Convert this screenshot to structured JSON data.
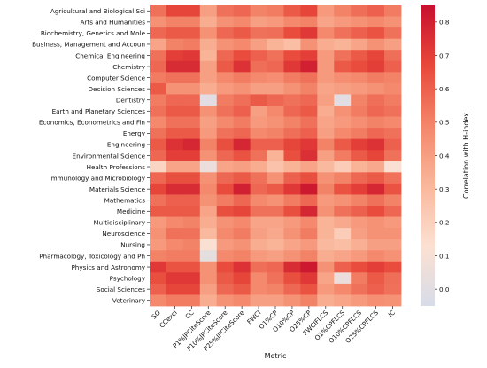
{
  "chart_data": {
    "type": "heatmap",
    "title": "",
    "xlabel": "Metric",
    "colorbar_label": "Correlation with H-index",
    "value_range": [
      -0.05,
      0.85
    ],
    "colorbar_ticks": [
      0.0,
      0.1,
      0.2,
      0.3,
      0.4,
      0.5,
      0.6,
      0.7,
      0.8
    ],
    "colorbar_tick_labels": [
      "0.0",
      "0.1",
      "0.2",
      "0.3",
      "0.4",
      "0.5",
      "0.6",
      "0.7",
      "0.8"
    ],
    "colormap": [
      "#d7dce8",
      "#fce0d2",
      "#f9b79b",
      "#f4866a",
      "#e8483a",
      "#c8102e"
    ],
    "columns": [
      "SO",
      "CCexcl",
      "CC",
      "P1%JPCiteScore",
      "P10%JPCiteScore",
      "P25%JPCiteScore",
      "FWCI",
      "O1%CP",
      "O10%CP",
      "O25%CP",
      "FWCIFLCS",
      "O1%CPFLCS",
      "O10%CPFLCS",
      "O25%CPFLCS",
      "IC"
    ],
    "rows": [
      "Agricultural and Biological Sci",
      "Arts and Humanities",
      "Biochemistry, Genetics and Mole",
      "Business, Management and Accoun",
      "Chemical Engineering",
      "Chemistry",
      "Computer Science",
      "Decision Sciences",
      "Dentistry",
      "Earth and Planetary Sciences",
      "Economics, Econometrics and Fin",
      "Energy",
      "Engineering",
      "Environmental Science",
      "Health Professions",
      "Immunology and Microbiology",
      "Materials Science",
      "Mathematics",
      "Medicine",
      "Multidisciplinary",
      "Neuroscience",
      "Nursing",
      "Pharmacology, Toxicology and Ph",
      "Physics and Astronomy",
      "Psychology",
      "Social Sciences",
      "Veterinary"
    ],
    "values": [
      [
        0.55,
        0.68,
        0.68,
        0.4,
        0.55,
        0.58,
        0.5,
        0.52,
        0.62,
        0.68,
        0.42,
        0.5,
        0.56,
        0.6,
        0.52
      ],
      [
        0.45,
        0.5,
        0.5,
        0.35,
        0.45,
        0.48,
        0.4,
        0.42,
        0.48,
        0.5,
        0.38,
        0.42,
        0.45,
        0.48,
        0.45
      ],
      [
        0.58,
        0.62,
        0.62,
        0.45,
        0.58,
        0.62,
        0.55,
        0.56,
        0.66,
        0.72,
        0.48,
        0.55,
        0.6,
        0.64,
        0.55
      ],
      [
        0.38,
        0.5,
        0.52,
        0.35,
        0.45,
        0.48,
        0.4,
        0.32,
        0.28,
        0.45,
        0.35,
        0.32,
        0.38,
        0.45,
        0.4
      ],
      [
        0.55,
        0.7,
        0.72,
        0.32,
        0.58,
        0.66,
        0.6,
        0.55,
        0.66,
        0.7,
        0.42,
        0.55,
        0.62,
        0.68,
        0.56
      ],
      [
        0.58,
        0.76,
        0.76,
        0.4,
        0.62,
        0.74,
        0.56,
        0.58,
        0.72,
        0.8,
        0.42,
        0.62,
        0.66,
        0.7,
        0.6
      ],
      [
        0.52,
        0.55,
        0.55,
        0.4,
        0.48,
        0.52,
        0.48,
        0.46,
        0.52,
        0.55,
        0.42,
        0.46,
        0.48,
        0.52,
        0.5
      ],
      [
        0.62,
        0.45,
        0.45,
        0.35,
        0.42,
        0.45,
        0.4,
        0.4,
        0.45,
        0.5,
        0.38,
        0.4,
        0.42,
        0.45,
        0.48
      ],
      [
        0.52,
        0.58,
        0.58,
        0.0,
        0.52,
        0.56,
        0.62,
        0.58,
        0.55,
        0.58,
        0.4,
        0.0,
        0.5,
        0.56,
        0.52
      ],
      [
        0.55,
        0.62,
        0.62,
        0.45,
        0.55,
        0.6,
        0.4,
        0.48,
        0.58,
        0.62,
        0.35,
        0.45,
        0.52,
        0.58,
        0.55
      ],
      [
        0.48,
        0.55,
        0.55,
        0.4,
        0.48,
        0.52,
        0.42,
        0.45,
        0.5,
        0.55,
        0.38,
        0.42,
        0.46,
        0.5,
        0.48
      ],
      [
        0.55,
        0.62,
        0.62,
        0.42,
        0.55,
        0.58,
        0.48,
        0.5,
        0.56,
        0.6,
        0.4,
        0.48,
        0.52,
        0.58,
        0.55
      ],
      [
        0.62,
        0.74,
        0.78,
        0.5,
        0.65,
        0.78,
        0.6,
        0.6,
        0.68,
        0.72,
        0.5,
        0.62,
        0.7,
        0.74,
        0.6
      ],
      [
        0.58,
        0.7,
        0.7,
        0.45,
        0.58,
        0.64,
        0.55,
        0.32,
        0.65,
        0.75,
        0.4,
        0.52,
        0.62,
        0.68,
        0.55
      ],
      [
        0.18,
        0.38,
        0.38,
        0.05,
        0.38,
        0.4,
        0.35,
        0.26,
        0.32,
        0.38,
        0.3,
        0.22,
        0.32,
        0.36,
        0.12
      ],
      [
        0.58,
        0.65,
        0.65,
        0.45,
        0.58,
        0.62,
        0.55,
        0.45,
        0.6,
        0.65,
        0.45,
        0.5,
        0.58,
        0.62,
        0.55
      ],
      [
        0.68,
        0.76,
        0.76,
        0.48,
        0.66,
        0.8,
        0.58,
        0.62,
        0.72,
        0.82,
        0.5,
        0.64,
        0.7,
        0.78,
        0.64
      ],
      [
        0.55,
        0.6,
        0.6,
        0.45,
        0.52,
        0.58,
        0.48,
        0.45,
        0.52,
        0.58,
        0.42,
        0.45,
        0.5,
        0.55,
        0.5
      ],
      [
        0.62,
        0.62,
        0.62,
        0.38,
        0.65,
        0.68,
        0.55,
        0.55,
        0.65,
        0.78,
        0.45,
        0.55,
        0.6,
        0.66,
        0.58
      ],
      [
        0.42,
        0.48,
        0.5,
        0.35,
        0.45,
        0.48,
        0.38,
        0.38,
        0.42,
        0.48,
        0.32,
        0.36,
        0.42,
        0.45,
        0.42
      ],
      [
        0.45,
        0.55,
        0.55,
        0.3,
        0.48,
        0.52,
        0.4,
        0.36,
        0.45,
        0.52,
        0.32,
        0.22,
        0.4,
        0.45,
        0.45
      ],
      [
        0.42,
        0.48,
        0.5,
        0.12,
        0.42,
        0.45,
        0.35,
        0.32,
        0.38,
        0.42,
        0.3,
        0.28,
        0.34,
        0.4,
        0.4
      ],
      [
        0.5,
        0.52,
        0.52,
        0.02,
        0.48,
        0.5,
        0.42,
        0.4,
        0.45,
        0.5,
        0.35,
        0.38,
        0.42,
        0.48,
        0.45
      ],
      [
        0.72,
        0.64,
        0.64,
        0.45,
        0.66,
        0.74,
        0.56,
        0.58,
        0.76,
        0.82,
        0.45,
        0.6,
        0.66,
        0.7,
        0.66
      ],
      [
        0.65,
        0.72,
        0.72,
        0.45,
        0.62,
        0.68,
        0.48,
        0.55,
        0.65,
        0.72,
        0.38,
        0.05,
        0.52,
        0.62,
        0.56
      ],
      [
        0.6,
        0.68,
        0.68,
        0.4,
        0.58,
        0.62,
        0.48,
        0.5,
        0.58,
        0.64,
        0.42,
        0.48,
        0.55,
        0.6,
        0.55
      ],
      [
        0.48,
        0.52,
        0.52,
        0.35,
        0.45,
        0.48,
        0.4,
        0.4,
        0.45,
        0.5,
        0.35,
        0.38,
        0.42,
        0.46,
        0.45
      ]
    ]
  }
}
